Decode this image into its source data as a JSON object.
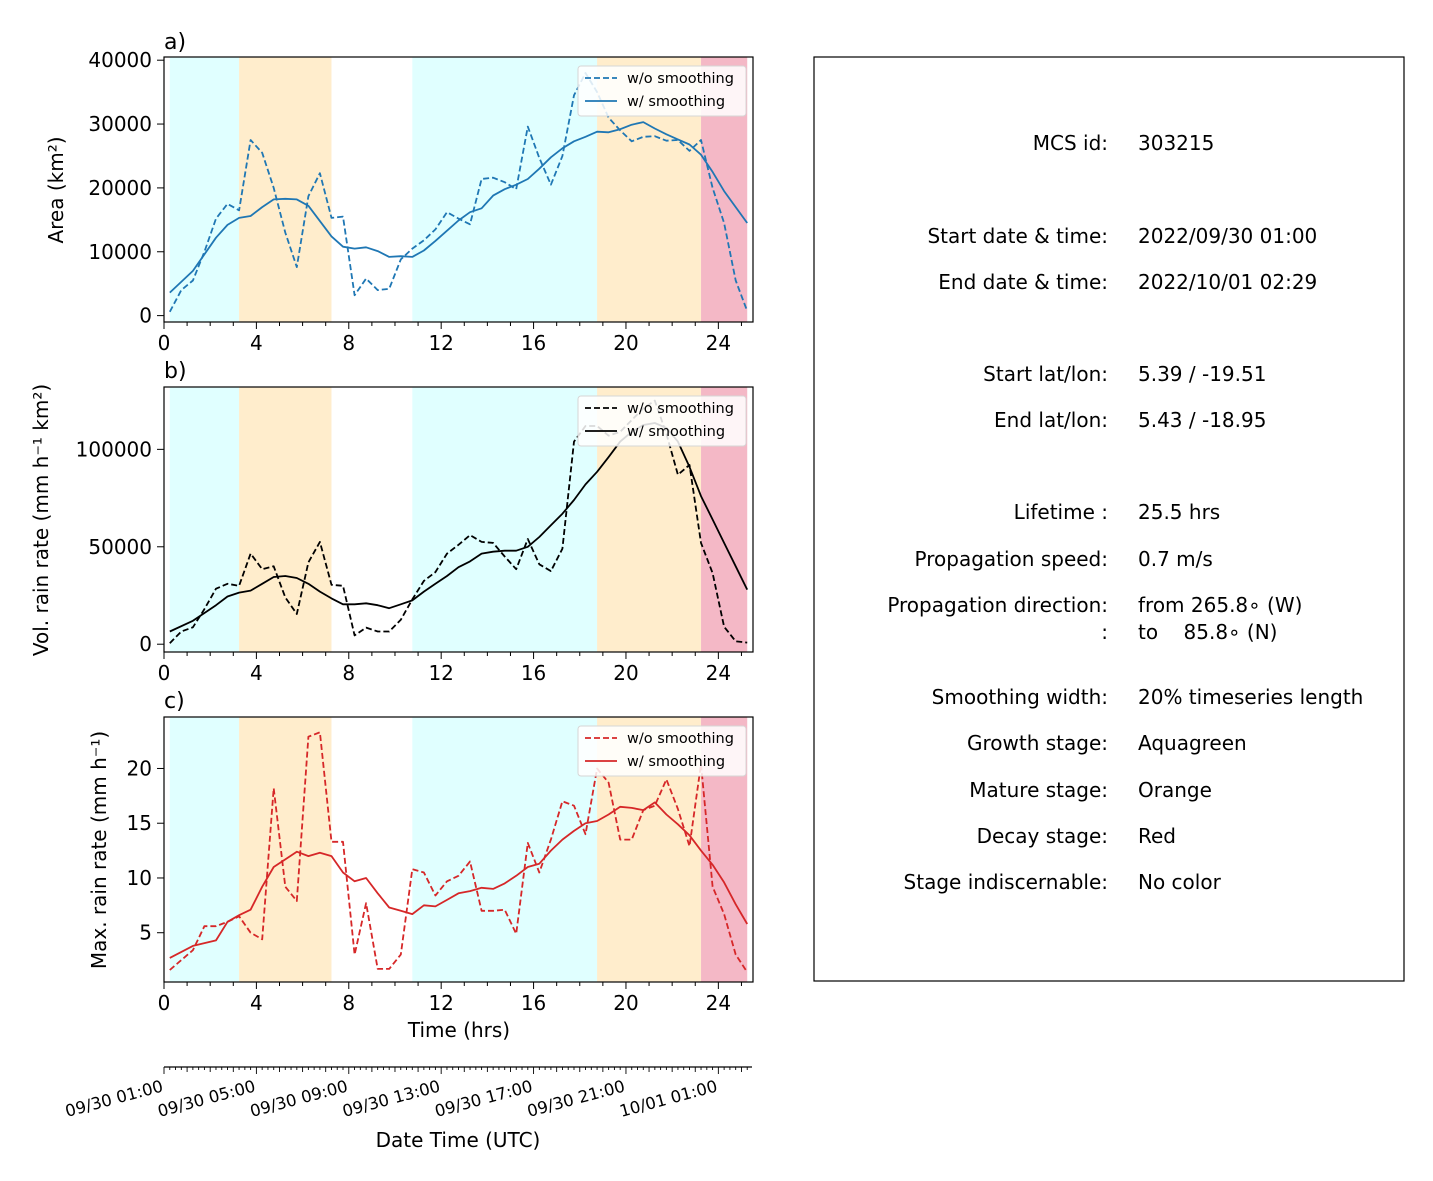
{
  "chart_data": [
    {
      "panel": "a)",
      "type": "line",
      "ylabel": "Area  (km²)",
      "xlim": [
        0,
        25.5
      ],
      "ylim": [
        -1000,
        40500
      ],
      "yticks": [
        0,
        10000,
        20000,
        30000,
        40000
      ],
      "xticks": [
        0,
        4,
        8,
        12,
        16,
        20,
        24
      ],
      "line_color": "#1f77b4",
      "stages": [
        {
          "stage": "growth",
          "start": 0.25,
          "end": 3.25,
          "color": "#e0ffff"
        },
        {
          "stage": "mature",
          "start": 3.25,
          "end": 7.25,
          "color": "#ffedcc"
        },
        {
          "stage": "growth",
          "start": 10.75,
          "end": 18.75,
          "color": "#e0ffff"
        },
        {
          "stage": "mature",
          "start": 18.75,
          "end": 23.25,
          "color": "#ffedcc"
        },
        {
          "stage": "decay",
          "start": 23.25,
          "end": 25.25,
          "color": "#f4b8c6"
        }
      ],
      "series": [
        {
          "name": "w/o smoothing",
          "style": "dashed",
          "x": [
            0.25,
            0.75,
            1.25,
            1.75,
            2.25,
            2.75,
            3.25,
            3.75,
            4.25,
            4.75,
            5.25,
            5.75,
            6.25,
            6.75,
            7.25,
            7.75,
            8.25,
            8.75,
            9.25,
            9.75,
            10.25,
            10.75,
            11.25,
            11.75,
            12.25,
            12.75,
            13.25,
            13.75,
            14.25,
            14.75,
            15.25,
            15.75,
            16.25,
            16.75,
            17.25,
            17.75,
            18.25,
            18.75,
            19.25,
            19.75,
            20.25,
            20.75,
            21.25,
            21.75,
            22.25,
            22.75,
            23.25,
            23.75,
            24.25,
            24.75,
            25.25
          ],
          "y": [
            600,
            4000,
            5500,
            10000,
            15200,
            17500,
            16500,
            27500,
            25500,
            20000,
            13000,
            7600,
            18700,
            22300,
            15300,
            15500,
            3200,
            5800,
            4000,
            4200,
            8800,
            10500,
            11800,
            13500,
            16200,
            15200,
            14300,
            21400,
            21600,
            20900,
            19800,
            29600,
            24700,
            20500,
            25000,
            34500,
            38000,
            35000,
            31000,
            29000,
            27300,
            28000,
            28100,
            27400,
            27500,
            25800,
            27500,
            20000,
            14500,
            5500,
            700
          ]
        },
        {
          "name": "w/ smoothing",
          "style": "solid",
          "x": [
            0.25,
            1.25,
            2.25,
            2.75,
            3.25,
            3.75,
            4.25,
            4.75,
            5.25,
            5.75,
            6.25,
            6.75,
            7.25,
            7.75,
            8.25,
            8.75,
            9.25,
            9.75,
            10.25,
            10.75,
            11.25,
            11.75,
            12.25,
            12.75,
            13.25,
            13.75,
            14.25,
            14.75,
            15.25,
            15.75,
            16.25,
            16.75,
            17.25,
            17.75,
            18.25,
            18.75,
            19.25,
            19.75,
            20.25,
            20.75,
            21.25,
            21.75,
            22.25,
            22.75,
            23.25,
            23.75,
            24.25,
            24.75,
            25.25
          ],
          "y": [
            3600,
            7000,
            12200,
            14200,
            15300,
            15600,
            17000,
            18200,
            18300,
            18200,
            17200,
            14800,
            12400,
            10800,
            10500,
            10700,
            10100,
            9200,
            9300,
            9200,
            10200,
            11700,
            13300,
            14900,
            16200,
            16800,
            18800,
            19800,
            20500,
            21400,
            23000,
            24800,
            26200,
            27300,
            28000,
            28800,
            28700,
            29200,
            29900,
            30300,
            29300,
            28400,
            27600,
            26800,
            25200,
            22500,
            19500,
            17000,
            14500
          ]
        }
      ]
    },
    {
      "panel": "b)",
      "type": "line",
      "ylabel": "Vol. rain rate (mm h⁻¹ km²)",
      "xlim": [
        0,
        25.5
      ],
      "ylim": [
        -4000,
        132000
      ],
      "yticks": [
        0,
        50000,
        100000
      ],
      "xticks": [
        0,
        4,
        8,
        12,
        16,
        20,
        24
      ],
      "line_color": "#000000",
      "stages": [
        {
          "stage": "growth",
          "start": 0.25,
          "end": 3.25,
          "color": "#e0ffff"
        },
        {
          "stage": "mature",
          "start": 3.25,
          "end": 7.25,
          "color": "#ffedcc"
        },
        {
          "stage": "growth",
          "start": 10.75,
          "end": 18.75,
          "color": "#e0ffff"
        },
        {
          "stage": "mature",
          "start": 18.75,
          "end": 23.25,
          "color": "#ffedcc"
        },
        {
          "stage": "decay",
          "start": 23.25,
          "end": 25.25,
          "color": "#f4b8c6"
        }
      ],
      "series": [
        {
          "name": "w/o smoothing",
          "style": "dashed",
          "x": [
            0.25,
            0.75,
            1.25,
            1.75,
            2.25,
            2.75,
            3.25,
            3.75,
            4.25,
            4.75,
            5.25,
            5.75,
            6.25,
            6.75,
            7.25,
            7.75,
            8.25,
            8.75,
            9.25,
            9.75,
            10.25,
            10.75,
            11.25,
            11.75,
            12.25,
            12.75,
            13.25,
            13.75,
            14.25,
            14.75,
            15.25,
            15.75,
            16.25,
            16.75,
            17.25,
            17.75,
            18.25,
            18.75,
            19.25,
            19.75,
            20.25,
            20.75,
            21.25,
            21.75,
            22.25,
            22.75,
            23.25,
            23.75,
            24.25,
            24.75,
            25.25
          ],
          "y": [
            500,
            6500,
            8700,
            18000,
            28500,
            31000,
            30000,
            46500,
            38500,
            40000,
            24000,
            15500,
            42000,
            52500,
            30500,
            30000,
            4500,
            8500,
            6500,
            6500,
            12500,
            23000,
            32500,
            37000,
            46500,
            51000,
            56000,
            52500,
            52000,
            45000,
            38500,
            54000,
            41000,
            37500,
            49000,
            104000,
            112000,
            112000,
            107000,
            109000,
            115000,
            121000,
            125000,
            108000,
            87000,
            92000,
            52000,
            36500,
            9000,
            1500,
            800
          ]
        },
        {
          "name": "w/ smoothing",
          "style": "solid",
          "x": [
            0.25,
            1.25,
            2.25,
            2.75,
            3.25,
            3.75,
            4.25,
            4.75,
            5.25,
            5.75,
            6.25,
            6.75,
            7.25,
            7.75,
            8.25,
            8.75,
            9.25,
            9.75,
            10.25,
            10.75,
            11.25,
            11.75,
            12.25,
            12.75,
            13.25,
            13.75,
            14.25,
            14.75,
            15.25,
            15.75,
            16.25,
            16.75,
            17.25,
            17.75,
            18.25,
            18.75,
            19.25,
            19.75,
            20.25,
            20.75,
            21.25,
            21.75,
            22.25,
            22.75,
            23.25,
            23.75,
            24.25,
            24.75,
            25.25
          ],
          "y": [
            6500,
            12000,
            20000,
            24500,
            26500,
            27500,
            31000,
            34500,
            35000,
            34000,
            31000,
            27000,
            23500,
            20500,
            20500,
            21000,
            20000,
            18500,
            20500,
            22500,
            27000,
            31000,
            35000,
            39500,
            42500,
            46500,
            47500,
            48000,
            48000,
            50000,
            55000,
            61000,
            67000,
            74000,
            82000,
            88500,
            96000,
            104000,
            109000,
            112500,
            113500,
            111000,
            104000,
            91000,
            76000,
            64000,
            52000,
            40000,
            28000
          ]
        }
      ]
    },
    {
      "panel": "c)",
      "type": "line",
      "ylabel": "Max. rain rate  (mm h⁻¹)",
      "xlim": [
        0,
        25.5
      ],
      "ylim": [
        0.5,
        24.7
      ],
      "yticks": [
        5,
        10,
        15,
        20
      ],
      "xticks": [
        0,
        4,
        8,
        12,
        16,
        20,
        24
      ],
      "xlabel": "Time (hrs)",
      "line_color": "#d62728",
      "stages": [
        {
          "stage": "growth",
          "start": 0.25,
          "end": 3.25,
          "color": "#e0ffff"
        },
        {
          "stage": "mature",
          "start": 3.25,
          "end": 7.25,
          "color": "#ffedcc"
        },
        {
          "stage": "growth",
          "start": 10.75,
          "end": 18.75,
          "color": "#e0ffff"
        },
        {
          "stage": "mature",
          "start": 18.75,
          "end": 23.25,
          "color": "#ffedcc"
        },
        {
          "stage": "decay",
          "start": 23.25,
          "end": 25.25,
          "color": "#f4b8c6"
        }
      ],
      "series": [
        {
          "name": "w/o smoothing",
          "style": "dashed",
          "x": [
            0.25,
            0.75,
            1.25,
            1.75,
            2.25,
            2.75,
            3.25,
            3.75,
            4.25,
            4.75,
            5.25,
            5.75,
            6.25,
            6.75,
            7.25,
            7.75,
            8.25,
            8.75,
            9.25,
            9.75,
            10.25,
            10.75,
            11.25,
            11.75,
            12.25,
            12.75,
            13.25,
            13.75,
            14.25,
            14.75,
            15.25,
            15.75,
            16.25,
            16.75,
            17.25,
            17.75,
            18.25,
            18.75,
            19.25,
            19.75,
            20.25,
            20.75,
            21.25,
            21.75,
            22.25,
            22.75,
            23.25,
            23.75,
            24.25,
            24.75,
            25.25
          ],
          "y": [
            1.6,
            2.5,
            3.4,
            5.6,
            5.6,
            6.0,
            6.5,
            5.0,
            4.4,
            18.2,
            9.2,
            7.9,
            22.9,
            23.3,
            13.3,
            13.3,
            3.0,
            7.7,
            1.7,
            1.7,
            3.0,
            10.8,
            10.5,
            8.4,
            9.7,
            10.2,
            11.5,
            7.0,
            7.0,
            7.1,
            4.9,
            13.2,
            10.5,
            13.5,
            17.0,
            16.6,
            14.0,
            20.0,
            18.7,
            13.5,
            13.5,
            16.2,
            16.6,
            19.0,
            16.3,
            12.9,
            20.4,
            9.2,
            6.7,
            3.0,
            1.4
          ]
        },
        {
          "name": "w/ smoothing",
          "style": "solid",
          "x": [
            0.25,
            1.25,
            2.25,
            2.75,
            3.25,
            3.75,
            4.25,
            4.75,
            5.25,
            5.75,
            6.25,
            6.75,
            7.25,
            7.75,
            8.25,
            8.75,
            9.25,
            9.75,
            10.25,
            10.75,
            11.25,
            11.75,
            12.25,
            12.75,
            13.25,
            13.75,
            14.25,
            14.75,
            15.25,
            15.75,
            16.25,
            16.75,
            17.25,
            17.75,
            18.25,
            18.75,
            19.25,
            19.75,
            20.25,
            20.75,
            21.25,
            21.75,
            22.25,
            22.75,
            23.25,
            23.75,
            24.25,
            24.75,
            25.25
          ],
          "y": [
            2.7,
            3.8,
            4.3,
            6.0,
            6.6,
            7.1,
            9.2,
            11.0,
            11.7,
            12.4,
            12.0,
            12.3,
            12.0,
            10.5,
            9.7,
            10.0,
            8.6,
            7.3,
            7.0,
            6.7,
            7.5,
            7.4,
            8.0,
            8.6,
            8.8,
            9.1,
            9.0,
            9.5,
            10.2,
            11.0,
            11.3,
            12.5,
            13.5,
            14.3,
            15.0,
            15.2,
            15.8,
            16.5,
            16.4,
            16.2,
            16.9,
            15.8,
            14.9,
            13.9,
            12.5,
            11.2,
            9.6,
            7.6,
            5.8
          ]
        }
      ]
    }
  ],
  "legend": {
    "without_smoothing": "w/o smoothing",
    "with_smoothing": "w/ smoothing"
  },
  "colors": {
    "growth": "#e0ffff",
    "mature": "#ffedcc",
    "decay": "#f4b8c6",
    "area_line": "#1f77b4",
    "vol_line": "#000000",
    "max_line": "#d62728"
  },
  "datetime_axis": {
    "label": "Date Time (UTC)",
    "labels": [
      {
        "t": 0,
        "text": "09/30 01:00"
      },
      {
        "t": 4,
        "text": "09/30 05:00"
      },
      {
        "t": 8,
        "text": "09/30 09:00"
      },
      {
        "t": 12,
        "text": "09/30 13:00"
      },
      {
        "t": 16,
        "text": "09/30 17:00"
      },
      {
        "t": 20,
        "text": "09/30 21:00"
      },
      {
        "t": 24,
        "text": "10/01 01:00"
      }
    ]
  },
  "info": {
    "mcs_id_key": "MCS id:",
    "mcs_id_val": "303215",
    "start_dt_key": "Start date & time:",
    "start_dt_val": "2022/09/30 01:00",
    "end_dt_key": "End date & time:",
    "end_dt_val": "2022/10/01 02:29",
    "start_ll_key": "Start lat/lon:",
    "start_ll_val": "5.39 / -19.51",
    "end_ll_key": "End lat/lon:",
    "end_ll_val": "5.43 / -18.95",
    "lifetime_key": "Lifetime :",
    "lifetime_val": "25.5 hrs",
    "speed_key": "Propagation speed:",
    "speed_val": "0.7 m/s",
    "dir_key": "Propagation direction:",
    "dir_val": "from 265.8∘ (W)",
    "dir2_key": ":",
    "dir2_val": "to    85.8∘ (N)",
    "smooth_key": "Smoothing width:",
    "smooth_val": "20% timeseries length",
    "growth_key": "Growth stage:",
    "growth_val": "Aquagreen",
    "mature_key": "Mature stage:",
    "mature_val": "Orange",
    "decay_key": "Decay stage:",
    "decay_val": "Red",
    "indisc_key": "Stage indiscernable:",
    "indisc_val": "No color"
  }
}
